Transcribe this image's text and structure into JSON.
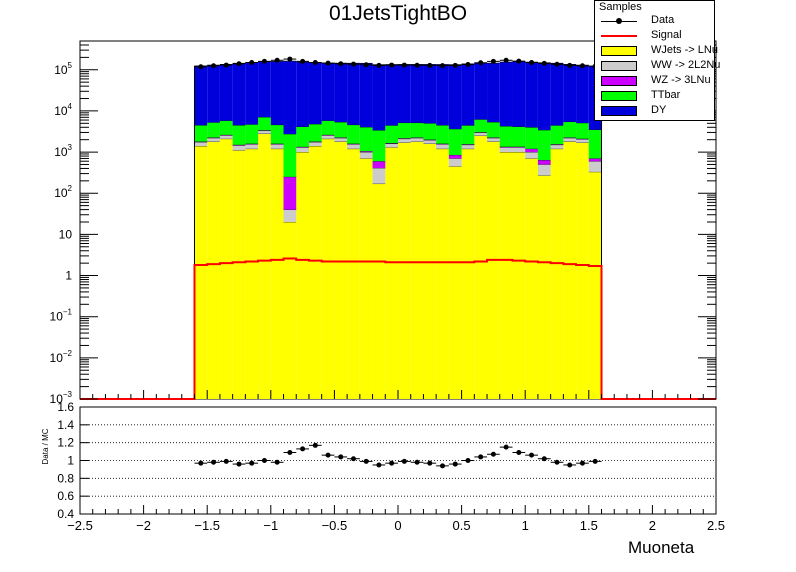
{
  "chart_data": {
    "type": "bar",
    "title": "01JetsTightBO",
    "xlabel": "Muoneta",
    "ylabel": "",
    "ratio_ylabel": "Data / MC",
    "stacked": true,
    "ylog": true,
    "ylim": [
      0.001,
      500000
    ],
    "xlim": [
      -2.5,
      2.5
    ],
    "ratio_ylim": [
      0.4,
      1.6
    ],
    "grid": false,
    "ratio_grid": true,
    "legend_title": "Samples",
    "legend_position": "top-right",
    "bin_edges": [
      -1.6,
      -1.5,
      -1.4,
      -1.3,
      -1.2,
      -1.1,
      -1.0,
      -0.9,
      -0.8,
      -0.7,
      -0.6,
      -0.5,
      -0.4,
      -0.3,
      -0.2,
      -0.1,
      0.0,
      0.1,
      0.2,
      0.3,
      0.4,
      0.5,
      0.6,
      0.7,
      0.8,
      0.9,
      1.0,
      1.1,
      1.2,
      1.3,
      1.4,
      1.5,
      1.6
    ],
    "x_ticks": [
      {
        "value": -2.5,
        "label": "−2.5"
      },
      {
        "value": -2,
        "label": "−2"
      },
      {
        "value": -1.5,
        "label": "−1.5"
      },
      {
        "value": -1,
        "label": "−1"
      },
      {
        "value": -0.5,
        "label": "−0.5"
      },
      {
        "value": 0,
        "label": "0"
      },
      {
        "value": 0.5,
        "label": "0.5"
      },
      {
        "value": 1,
        "label": "1"
      },
      {
        "value": 1.5,
        "label": "1.5"
      },
      {
        "value": 2,
        "label": "2"
      },
      {
        "value": 2.5,
        "label": "2.5"
      }
    ],
    "y_ticks": [
      {
        "value": 100000,
        "base": "10",
        "exp": "5"
      },
      {
        "value": 10000,
        "base": "10",
        "exp": "4"
      },
      {
        "value": 1000,
        "base": "10",
        "exp": "3"
      },
      {
        "value": 100,
        "base": "10",
        "exp": "2"
      },
      {
        "value": 10,
        "base": "10",
        "exp": ""
      },
      {
        "value": 1,
        "base": "1",
        "exp": ""
      },
      {
        "value": 0.1,
        "base": "10",
        "exp": "−1"
      },
      {
        "value": 0.01,
        "base": "10",
        "exp": "−2"
      },
      {
        "value": 0.001,
        "base": "10",
        "exp": "−3"
      }
    ],
    "ratio_ticks": [
      {
        "value": 0.4,
        "label": "0.4"
      },
      {
        "value": 0.6,
        "label": "0.6"
      },
      {
        "value": 0.8,
        "label": "0.8"
      },
      {
        "value": 1.0,
        "label": "1"
      },
      {
        "value": 1.2,
        "label": "1.2"
      },
      {
        "value": 1.4,
        "label": "1.4"
      },
      {
        "value": 1.6,
        "label": "1.6"
      }
    ],
    "series": [
      {
        "name": "WJets -> LNu",
        "color": "#ffff00",
        "line_color": "#000000",
        "values": [
          1400,
          1800,
          2100,
          1100,
          1200,
          2800,
          1200,
          20,
          1000,
          1400,
          2100,
          1800,
          1200,
          700,
          170,
          1300,
          1700,
          1800,
          1600,
          1200,
          450,
          1200,
          2500,
          1800,
          1000,
          1000,
          700,
          270,
          1200,
          1800,
          1700,
          330
        ]
      },
      {
        "name": "WW -> 2L2Nu",
        "color": "#cccccc",
        "line_color": "#000000",
        "values": [
          350,
          400,
          450,
          350,
          350,
          500,
          350,
          20,
          300,
          350,
          450,
          400,
          350,
          300,
          240,
          300,
          400,
          400,
          350,
          350,
          250,
          300,
          450,
          400,
          300,
          300,
          300,
          230,
          300,
          400,
          350,
          270
        ]
      },
      {
        "name": "WZ -> 3LNu",
        "color": "#cc00ff",
        "line_color": "#000000",
        "values": [
          50,
          60,
          70,
          50,
          50,
          80,
          50,
          210,
          40,
          50,
          70,
          60,
          50,
          50,
          190,
          50,
          60,
          60,
          60,
          50,
          150,
          50,
          70,
          60,
          50,
          50,
          200,
          140,
          50,
          60,
          60,
          100
        ]
      },
      {
        "name": "TTbar",
        "color": "#00ff00",
        "line_color": "#000000",
        "values": [
          2700,
          3000,
          3200,
          3000,
          3100,
          3700,
          3000,
          2500,
          2800,
          3000,
          3200,
          3100,
          3000,
          3000,
          2800,
          2800,
          3000,
          2900,
          3000,
          2900,
          2800,
          2900,
          3200,
          3100,
          2900,
          2800,
          2800,
          2800,
          2900,
          3200,
          3000,
          2800
        ]
      },
      {
        "name": "DY",
        "color": "#0000dd",
        "line_color": "#000000",
        "values": [
          120000,
          125000,
          130000,
          140000,
          145000,
          150000,
          155000,
          160000,
          150000,
          145000,
          140000,
          140000,
          140000,
          140000,
          130000,
          130000,
          130000,
          130000,
          130000,
          130000,
          130000,
          135000,
          140000,
          140000,
          150000,
          155000,
          150000,
          145000,
          140000,
          130000,
          125000,
          120000
        ]
      }
    ],
    "signal": {
      "name": "Signal",
      "color": "#ff0000",
      "values": [
        1.8,
        1.9,
        2.0,
        2.1,
        2.2,
        2.3,
        2.4,
        2.6,
        2.4,
        2.3,
        2.2,
        2.2,
        2.2,
        2.2,
        2.2,
        2.1,
        2.1,
        2.1,
        2.1,
        2.1,
        2.1,
        2.1,
        2.2,
        2.4,
        2.4,
        2.3,
        2.2,
        2.1,
        2.0,
        1.9,
        1.8,
        1.7
      ],
      "outside_value": 0.001
    },
    "data": {
      "name": "Data",
      "color": "#000000",
      "values": [
        118000,
        125000,
        130000,
        140000,
        150000,
        160000,
        170000,
        182000,
        160000,
        150000,
        145000,
        140000,
        137000,
        132000,
        128000,
        130000,
        130000,
        129000,
        128000,
        126000,
        128000,
        134000,
        148000,
        160000,
        170000,
        162000,
        150000,
        143000,
        136000,
        128000,
        125000,
        122000
      ]
    },
    "ratio": {
      "values": [
        0.97,
        0.98,
        0.99,
        0.96,
        0.97,
        1.0,
        0.98,
        1.09,
        1.13,
        1.17,
        1.06,
        1.04,
        1.02,
        0.99,
        0.95,
        0.97,
        0.99,
        0.98,
        0.97,
        0.94,
        0.96,
        1.0,
        1.04,
        1.07,
        1.15,
        1.09,
        1.06,
        1.02,
        0.98,
        0.95,
        0.97,
        0.99
      ]
    }
  }
}
